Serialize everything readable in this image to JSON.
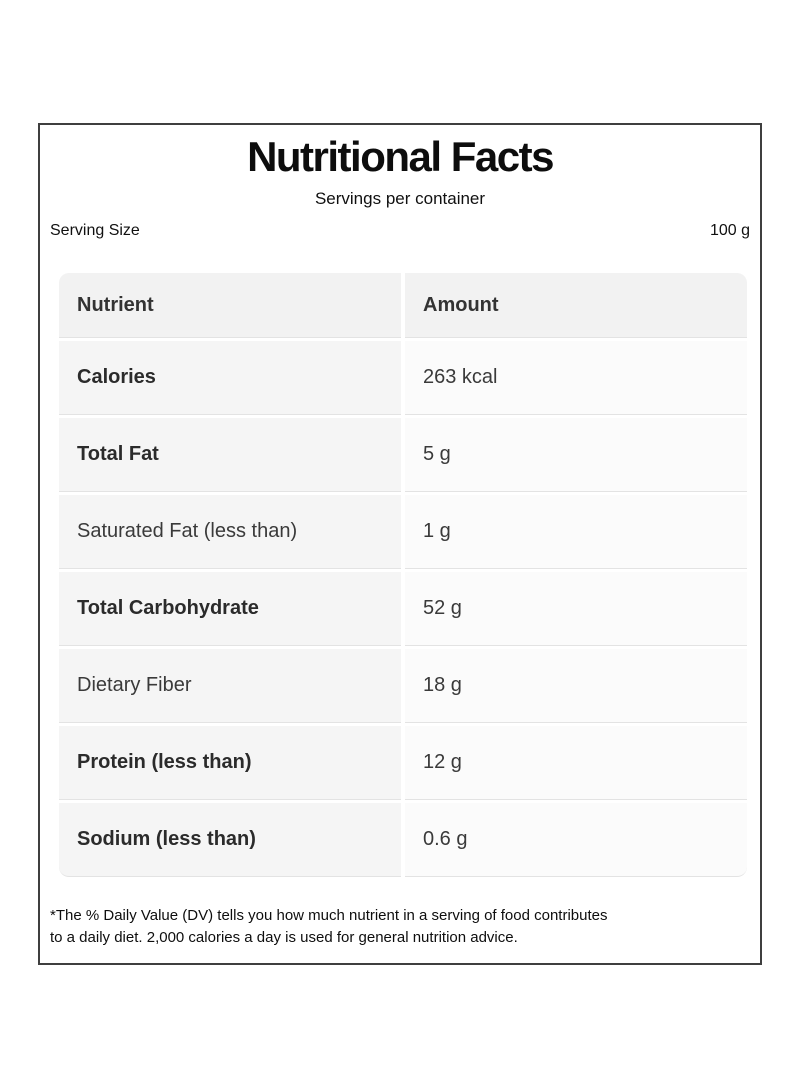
{
  "label": {
    "title": "Nutritional Facts",
    "servings_per_container": "Servings per container",
    "serving_size_label": "Serving Size",
    "serving_size_value": "100 g",
    "footnote": "*The % Daily Value (DV) tells you how much nutrient in a serving of food contributes\nto a daily diet. 2,000 calories a day is used for general nutrition advice."
  },
  "table": {
    "headers": [
      "Nutrient",
      "Amount"
    ],
    "rows": [
      {
        "nutrient": "Calories",
        "amount": "263 kcal"
      },
      {
        "nutrient": "Total Fat",
        "amount": "5 g"
      },
      {
        "nutrient": "Saturated Fat (less than)",
        "amount": "1 g"
      },
      {
        "nutrient": "Total Carbohydrate",
        "amount": "52 g"
      },
      {
        "nutrient": "Dietary Fiber",
        "amount": "18 g"
      },
      {
        "nutrient": "Protein (less than)",
        "amount": "12 g"
      },
      {
        "nutrient": "Sodium (less than)",
        "amount": "0.6 g"
      }
    ]
  },
  "colors": {
    "card_border": "#3f3f3f",
    "header_cell_bg": "#f2f2f2",
    "nutrient_cell_bg": "#f5f5f5",
    "amount_cell_bg": "#fbfbfb",
    "text": "#1f1f1f"
  }
}
